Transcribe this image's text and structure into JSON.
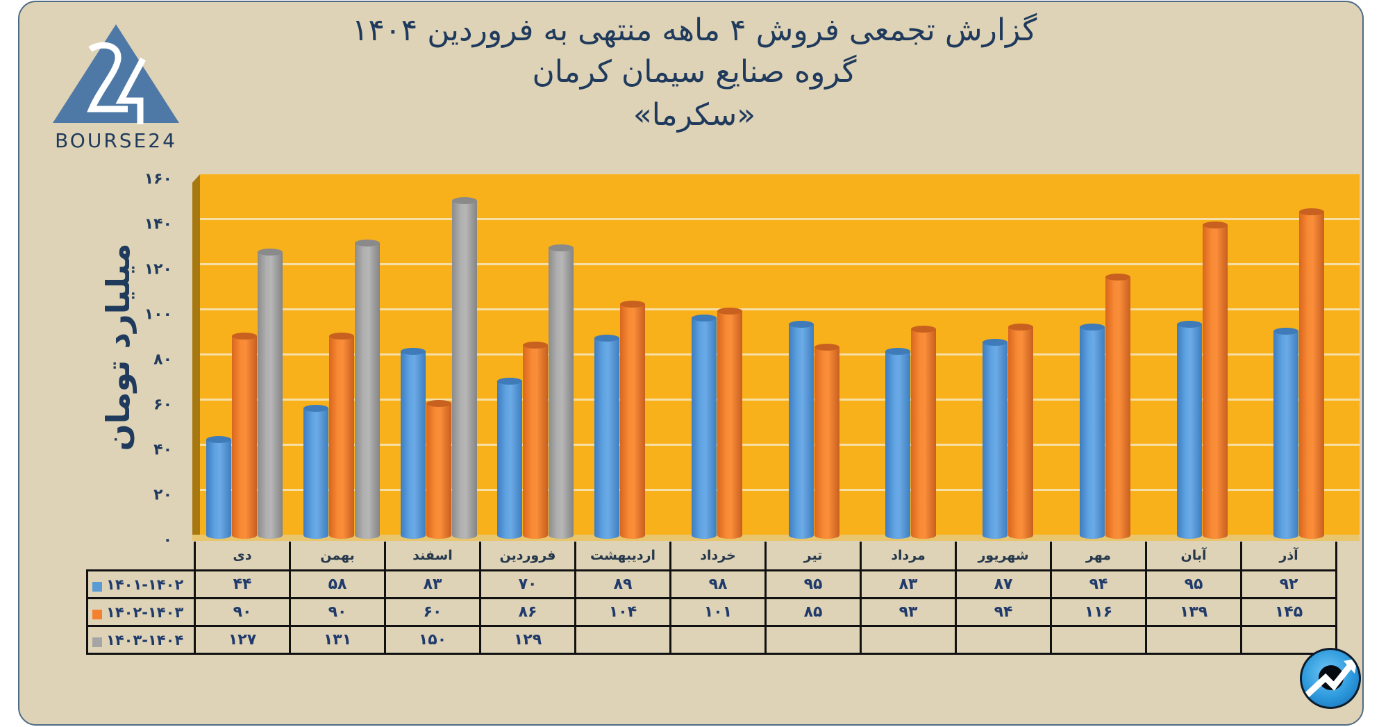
{
  "header": {
    "title_line1": "گزارش تجمعی فروش ۴ ماهه منتهی به فروردین ۱۴۰۴",
    "title_line2": "گروه صنایع سیمان کرمان",
    "title_line3": "«سکرما»"
  },
  "logo": {
    "text": "BOURSE24",
    "color": "#4E79A6"
  },
  "colors": {
    "card_bg": "#DED3B6",
    "plot_bg": "#F8B11B",
    "series_1401_1402": "#5B9BD5",
    "series_1402_1403": "#F4812F",
    "series_1403_1404": "#A5A5A5",
    "text": "#1F3A5C"
  },
  "yaxis": {
    "title": "میلیارد تومان",
    "ticks": [
      "۰",
      "۲۰",
      "۴۰",
      "۶۰",
      "۸۰",
      "۱۰۰",
      "۱۲۰",
      "۱۴۰",
      "۱۶۰"
    ]
  },
  "table": {
    "months": [
      "دی",
      "بهمن",
      "اسفند",
      "فروردین",
      "اردیبهشت",
      "خرداد",
      "تیر",
      "مرداد",
      "شهریور",
      "مهر",
      "آبان",
      "آذر"
    ],
    "rows": [
      {
        "label": "۱۴۰۱-۱۴۰۲",
        "color": "#5B9BD5",
        "cells": [
          "۴۴",
          "۵۸",
          "۸۳",
          "۷۰",
          "۸۹",
          "۹۸",
          "۹۵",
          "۸۳",
          "۸۷",
          "۹۴",
          "۹۵",
          "۹۲"
        ]
      },
      {
        "label": "۱۴۰۲-۱۴۰۳",
        "color": "#F4812F",
        "cells": [
          "۹۰",
          "۹۰",
          "۶۰",
          "۸۶",
          "۱۰۴",
          "۱۰۱",
          "۸۵",
          "۹۳",
          "۹۴",
          "۱۱۶",
          "۱۳۹",
          "۱۴۵"
        ]
      },
      {
        "label": "۱۴۰۳-۱۴۰۴",
        "color": "#A5A5A5",
        "cells": [
          "۱۲۷",
          "۱۳۱",
          "۱۵۰",
          "۱۲۹",
          "",
          "",
          "",
          "",
          "",
          "",
          "",
          ""
        ]
      }
    ]
  },
  "chart_data": {
    "type": "bar",
    "title": "گزارش تجمعی فروش ۴ ماهه منتهی به فروردین ۱۴۰۴ — گروه صنایع سیمان کرمان «سکرما»",
    "xlabel": "",
    "ylabel": "میلیارد تومان",
    "ylim": [
      0,
      160
    ],
    "yticks": [
      0,
      20,
      40,
      60,
      80,
      100,
      120,
      140,
      160
    ],
    "grid": true,
    "legend_position": "table-left",
    "categories": [
      "دی",
      "بهمن",
      "اسفند",
      "فروردین",
      "اردیبهشت",
      "خرداد",
      "تیر",
      "مرداد",
      "شهریور",
      "مهر",
      "آبان",
      "آذر"
    ],
    "series": [
      {
        "name": "1401-1402",
        "color": "#5B9BD5",
        "values": [
          44,
          58,
          83,
          70,
          89,
          98,
          95,
          83,
          87,
          94,
          95,
          92
        ]
      },
      {
        "name": "1402-1403",
        "color": "#F4812F",
        "values": [
          90,
          90,
          60,
          86,
          104,
          101,
          85,
          93,
          94,
          116,
          139,
          145
        ]
      },
      {
        "name": "1403-1404",
        "color": "#A5A5A5",
        "values": [
          127,
          131,
          150,
          129,
          null,
          null,
          null,
          null,
          null,
          null,
          null,
          null
        ]
      }
    ]
  }
}
